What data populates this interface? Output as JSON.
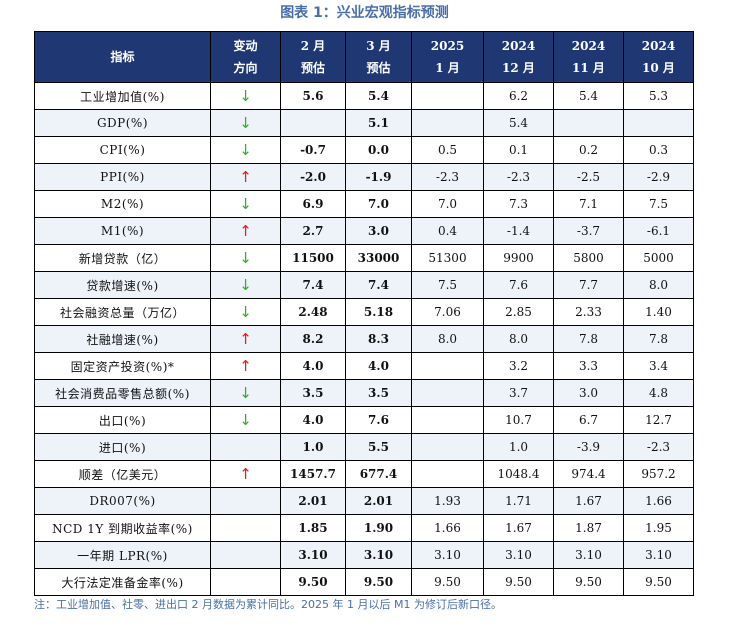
{
  "title": "图表 1：兴业宏观指标预测",
  "header": {
    "indicator": "指标",
    "direction": [
      "变动",
      "方向"
    ],
    "feb": [
      "2 月",
      "预估"
    ],
    "mar": [
      "3 月",
      "预估"
    ],
    "jan2025": [
      "2025",
      "1 月"
    ],
    "dec2024": [
      "2024",
      "12 月"
    ],
    "nov2024": [
      "2024",
      "11 月"
    ],
    "oct2024": [
      "2024",
      "10 月"
    ]
  },
  "rows": [
    {
      "name": "工业增加值(%)",
      "dir": "down",
      "arrow": "↓",
      "feb": "5.6",
      "mar": "5.4",
      "jan": "",
      "dec": "6.2",
      "nov": "5.4",
      "oct": "5.3"
    },
    {
      "name": "GDP(%)",
      "dir": "down",
      "arrow": "↓",
      "feb": "",
      "mar": "5.1",
      "jan": "",
      "dec": "5.4",
      "nov": "",
      "oct": ""
    },
    {
      "name": "CPI(%)",
      "dir": "down",
      "arrow": "↓",
      "feb": "-0.7",
      "mar": "0.0",
      "jan": "0.5",
      "dec": "0.1",
      "nov": "0.2",
      "oct": "0.3"
    },
    {
      "name": "PPI(%)",
      "dir": "up",
      "arrow": "↑",
      "feb": "-2.0",
      "mar": "-1.9",
      "jan": "-2.3",
      "dec": "-2.3",
      "nov": "-2.5",
      "oct": "-2.9"
    },
    {
      "name": "M2(%)",
      "dir": "down",
      "arrow": "↓",
      "feb": "6.9",
      "mar": "7.0",
      "jan": "7.0",
      "dec": "7.3",
      "nov": "7.1",
      "oct": "7.5"
    },
    {
      "name": "M1(%)",
      "dir": "up",
      "arrow": "↑",
      "feb": "2.7",
      "mar": "3.0",
      "jan": "0.4",
      "dec": "-1.4",
      "nov": "-3.7",
      "oct": "-6.1"
    },
    {
      "name": "新增贷款（亿）",
      "dir": "down",
      "arrow": "↓",
      "feb": "11500",
      "mar": "33000",
      "jan": "51300",
      "dec": "9900",
      "nov": "5800",
      "oct": "5000"
    },
    {
      "name": "贷款增速(%)",
      "dir": "down",
      "arrow": "↓",
      "feb": "7.4",
      "mar": "7.4",
      "jan": "7.5",
      "dec": "7.6",
      "nov": "7.7",
      "oct": "8.0"
    },
    {
      "name": "社会融资总量（万亿）",
      "dir": "down",
      "arrow": "↓",
      "feb": "2.48",
      "mar": "5.18",
      "jan": "7.06",
      "dec": "2.85",
      "nov": "2.33",
      "oct": "1.40"
    },
    {
      "name": "社融增速(%)",
      "dir": "up",
      "arrow": "↑",
      "feb": "8.2",
      "mar": "8.3",
      "jan": "8.0",
      "dec": "8.0",
      "nov": "7.8",
      "oct": "7.8"
    },
    {
      "name": "固定资产投资(%)*",
      "dir": "up",
      "arrow": "↑",
      "feb": "4.0",
      "mar": "4.0",
      "jan": "",
      "dec": "3.2",
      "nov": "3.3",
      "oct": "3.4"
    },
    {
      "name": "社会消费品零售总额(%)",
      "dir": "down",
      "arrow": "↓",
      "feb": "3.5",
      "mar": "3.5",
      "jan": "",
      "dec": "3.7",
      "nov": "3.0",
      "oct": "4.8"
    },
    {
      "name": "出口(%)",
      "dir": "down",
      "arrow": "↓",
      "feb": "4.0",
      "mar": "7.6",
      "jan": "",
      "dec": "10.7",
      "nov": "6.7",
      "oct": "12.7"
    },
    {
      "name": "进口(%)",
      "dir": "",
      "arrow": "",
      "feb": "1.0",
      "mar": "5.5",
      "jan": "",
      "dec": "1.0",
      "nov": "-3.9",
      "oct": "-2.3"
    },
    {
      "name": "顺差（亿美元）",
      "dir": "up",
      "arrow": "↑",
      "feb": "1457.7",
      "mar": "677.4",
      "jan": "",
      "dec": "1048.4",
      "nov": "974.4",
      "oct": "957.2"
    },
    {
      "name": "DR007(%)",
      "dir": "",
      "arrow": "",
      "feb": "2.01",
      "mar": "2.01",
      "jan": "1.93",
      "dec": "1.71",
      "nov": "1.67",
      "oct": "1.66"
    },
    {
      "name": "NCD 1Y 到期收益率(%)",
      "dir": "",
      "arrow": "",
      "feb": "1.85",
      "mar": "1.90",
      "jan": "1.66",
      "dec": "1.67",
      "nov": "1.87",
      "oct": "1.95"
    },
    {
      "name": "一年期 LPR(%)",
      "dir": "",
      "arrow": "",
      "feb": "3.10",
      "mar": "3.10",
      "jan": "3.10",
      "dec": "3.10",
      "nov": "3.10",
      "oct": "3.10"
    },
    {
      "name": "大行法定准备金率(%)",
      "dir": "",
      "arrow": "",
      "feb": "9.50",
      "mar": "9.50",
      "jan": "9.50",
      "dec": "9.50",
      "nov": "9.50",
      "oct": "9.50"
    }
  ],
  "note": "注：工业增加值、社零、进出口 2 月数据为累计同比。2025 年 1 月以后 M1 为修订后新口径。",
  "colors": {
    "header_bg": "#1f3874",
    "title": "#4a6fa8",
    "up_arrow": "#e02020",
    "down_arrow": "#2eaf2e"
  }
}
